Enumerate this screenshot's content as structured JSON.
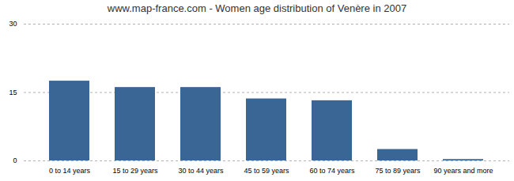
{
  "chart_data": {
    "type": "bar",
    "title": "www.map-france.com - Women age distribution of Venère in 2007",
    "categories": [
      "0 to 14 years",
      "15 to 29 years",
      "30 to 44 years",
      "45 to 59 years",
      "60 to 74 years",
      "75 to 89 years",
      "90 years and more"
    ],
    "values": [
      17.5,
      16.1,
      16.1,
      13.6,
      13.2,
      2.5,
      0.3
    ],
    "color": "#3a6695",
    "ylim": [
      0,
      30
    ],
    "yticks": [
      0,
      15,
      30
    ],
    "grid": true
  }
}
